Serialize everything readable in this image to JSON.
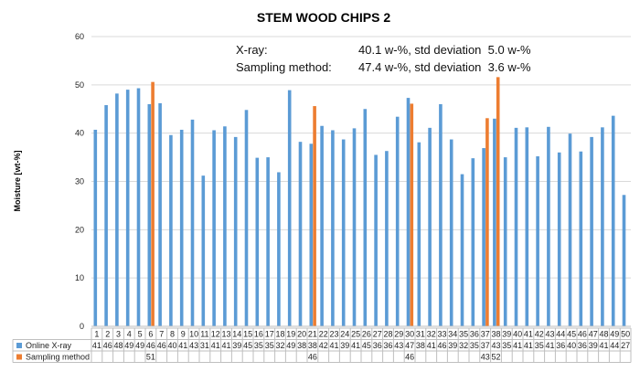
{
  "chart_data": {
    "type": "bar",
    "title": "STEM WOOD CHIPS 2",
    "ylabel": "Moisture [wt-%]",
    "xlabel": "",
    "ylim": [
      0,
      60
    ],
    "yticks": [
      0,
      10,
      20,
      30,
      40,
      50,
      60
    ],
    "grid": true,
    "legend_placement": "table-below",
    "categories": [
      "1",
      "2",
      "3",
      "4",
      "5",
      "6",
      "7",
      "8",
      "9",
      "10",
      "11",
      "12",
      "13",
      "14",
      "15",
      "16",
      "17",
      "18",
      "19",
      "20",
      "21",
      "22",
      "23",
      "24",
      "25",
      "26",
      "27",
      "28",
      "29",
      "30",
      "31",
      "32",
      "33",
      "34",
      "35",
      "36",
      "37",
      "38",
      "39",
      "40",
      "41",
      "42",
      "43",
      "44",
      "45",
      "46",
      "47",
      "48",
      "49",
      "50"
    ],
    "series": [
      {
        "name": "Online X-ray",
        "color": "#5B9BD5",
        "values": [
          40.7,
          45.8,
          48.2,
          49.0,
          49.3,
          46.0,
          46.2,
          39.6,
          40.7,
          42.8,
          31.2,
          40.6,
          41.4,
          39.2,
          44.8,
          34.9,
          35.0,
          31.9,
          48.9,
          38.2,
          37.8,
          41.5,
          40.6,
          38.7,
          41.0,
          45.0,
          35.5,
          36.3,
          43.4,
          47.3,
          38.1,
          41.1,
          46.0,
          38.7,
          31.5,
          34.8,
          36.9,
          43.0,
          35.0,
          41.1,
          41.2,
          35.2,
          41.3,
          36.0,
          39.9,
          36.2,
          39.2,
          41.2,
          43.6,
          27.2
        ],
        "table_values": [
          "41",
          "46",
          "48",
          "49",
          "49",
          "46",
          "46",
          "40",
          "41",
          "43",
          "31",
          "41",
          "41",
          "39",
          "45",
          "35",
          "35",
          "32",
          "49",
          "38",
          "38",
          "42",
          "41",
          "39",
          "41",
          "45",
          "36",
          "36",
          "43",
          "47",
          "38",
          "41",
          "46",
          "39",
          "32",
          "35",
          "37",
          "43",
          "35",
          "41",
          "41",
          "35",
          "41",
          "36",
          "40",
          "36",
          "39",
          "41",
          "44",
          "27"
        ]
      },
      {
        "name": "Sampling method",
        "color": "#ED7D31",
        "values": [
          null,
          null,
          null,
          null,
          null,
          50.6,
          null,
          null,
          null,
          null,
          null,
          null,
          null,
          null,
          null,
          null,
          null,
          null,
          null,
          null,
          45.6,
          null,
          null,
          null,
          null,
          null,
          null,
          null,
          null,
          46.1,
          null,
          null,
          null,
          null,
          null,
          null,
          43.1,
          51.6,
          null,
          null,
          null,
          null,
          null,
          null,
          null,
          null,
          null,
          null,
          null,
          null
        ],
        "table_values": [
          "",
          "",
          "",
          "",
          "",
          "51",
          "",
          "",
          "",
          "",
          "",
          "",
          "",
          "",
          "",
          "",
          "",
          "",
          "",
          "",
          "46",
          "",
          "",
          "",
          "",
          "",
          "",
          "",
          "",
          "46",
          "",
          "",
          "",
          "",
          "",
          "",
          "43",
          "52",
          "",
          "",
          "",
          "",
          "",
          "",
          "",
          "",
          "",
          "",
          "",
          ""
        ]
      }
    ],
    "annotations": [
      {
        "label": "X-ray:",
        "value": "40.1 w-%, std deviation  5.0 w-%"
      },
      {
        "label": "Sampling method:",
        "value": "47.4 w-%, std deviation  3.6 w-%"
      }
    ]
  }
}
